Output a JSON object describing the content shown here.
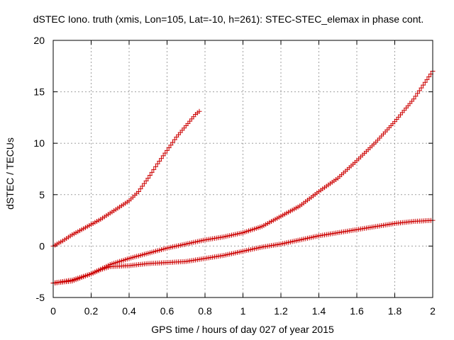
{
  "chart_data": {
    "type": "scatter",
    "title": "dSTEC Iono. truth (xmis, Lon=105, Lat=-10, h=261): STEC-STEC_elemax in phase cont.",
    "xlabel": "GPS time / hours of day 027 of year 2015",
    "ylabel": "dSTEC  / TECUs",
    "xlim": [
      0,
      2
    ],
    "ylim": [
      -5,
      20
    ],
    "x_ticks": [
      0,
      0.2,
      0.4,
      0.6,
      0.8,
      1,
      1.2,
      1.4,
      1.6,
      1.8,
      2
    ],
    "x_tick_labels": [
      "0",
      "0.2",
      "0.4",
      "0.6",
      "0.8",
      "1",
      "1.2",
      "1.4",
      "1.6",
      "1.8",
      "2"
    ],
    "y_ticks": [
      -5,
      0,
      5,
      10,
      15,
      20
    ],
    "y_tick_labels": [
      "-5",
      "0",
      "5",
      "10",
      "15",
      "20"
    ],
    "grid": true,
    "legend": "none",
    "marker": "plus",
    "marker_color": "#cc0000",
    "series": [
      {
        "x": [
          0,
          0.05,
          0.1,
          0.15,
          0.2,
          0.25,
          0.3,
          0.35,
          0.4,
          0.45,
          0.5,
          0.55,
          0.6,
          0.65,
          0.7,
          0.75,
          0.77
        ],
        "y": [
          0,
          0.5,
          1.1,
          1.6,
          2.1,
          2.6,
          3.2,
          3.8,
          4.4,
          5.3,
          6.6,
          8.0,
          9.3,
          10.6,
          11.7,
          12.8,
          13.1
        ]
      },
      {
        "x": [
          0,
          0.1,
          0.2,
          0.3,
          0.4,
          0.5,
          0.6,
          0.7,
          0.8,
          0.9,
          1.0,
          1.1,
          1.2,
          1.3,
          1.4,
          1.5,
          1.6,
          1.7,
          1.8,
          1.9,
          2.0
        ],
        "y": [
          -3.6,
          -3.4,
          -2.7,
          -1.8,
          -1.2,
          -0.7,
          -0.2,
          0.2,
          0.6,
          0.9,
          1.3,
          1.9,
          2.9,
          3.9,
          5.3,
          6.6,
          8.3,
          10.1,
          12.1,
          14.3,
          17.0
        ]
      },
      {
        "x": [
          0,
          0.1,
          0.2,
          0.25,
          0.3,
          0.4,
          0.5,
          0.6,
          0.7,
          0.8,
          0.9,
          1.0,
          1.1,
          1.2,
          1.3,
          1.4,
          1.5,
          1.6,
          1.7,
          1.8,
          1.9,
          2.0
        ],
        "y": [
          -3.6,
          -3.3,
          -2.7,
          -2.3,
          -2.0,
          -1.9,
          -1.7,
          -1.6,
          -1.5,
          -1.2,
          -0.9,
          -0.5,
          -0.1,
          0.2,
          0.6,
          1.0,
          1.3,
          1.6,
          1.9,
          2.2,
          2.4,
          2.5
        ]
      }
    ]
  }
}
